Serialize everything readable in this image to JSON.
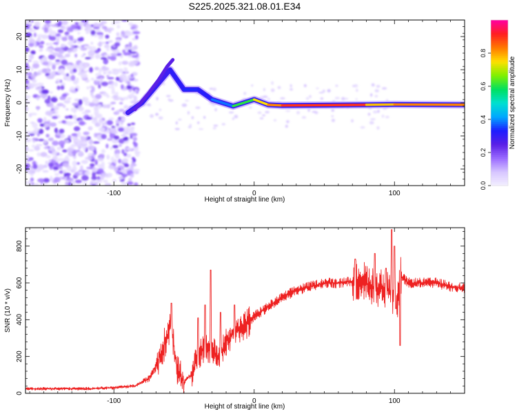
{
  "figure_title": "S225.2025.321.08.01.E34",
  "chart_data": [
    {
      "type": "heatmap",
      "title": "S225.2025.321.08.01.E34",
      "xlabel": "Height of straight line (km)",
      "ylabel": "Frequency (Hz)",
      "xlim": [
        -163,
        150
      ],
      "ylim": [
        -25,
        25
      ],
      "xticks": [
        -100,
        0,
        100
      ],
      "yticks": [
        -20,
        -10,
        0,
        10,
        20
      ],
      "xtick_labels": [
        "-100",
        "0",
        "100"
      ],
      "ytick_labels": [
        "-20",
        "-10",
        "0",
        "10",
        "20"
      ],
      "colorbar": {
        "label": "Normalized spectral amplitude",
        "range": [
          0,
          1
        ],
        "ticks": [
          0.0,
          0.2,
          0.4,
          0.6,
          0.8
        ],
        "tick_labels": [
          "0.0",
          "0.2",
          "0.4",
          "0.6",
          "0.8"
        ],
        "colormap": [
          "#f4f0ff",
          "#d7c6ff",
          "#9a6bff",
          "#5a1fe6",
          "#1d1dff",
          "#00a8ff",
          "#00e0d0",
          "#00e060",
          "#80f000",
          "#ffe000",
          "#ff7a00",
          "#ff2020",
          "#ff00a0"
        ]
      },
      "ridge": [
        {
          "x": -90,
          "freq": -3,
          "amp": 0.25
        },
        {
          "x": -80,
          "freq": 0,
          "amp": 0.28
        },
        {
          "x": -70,
          "freq": 5,
          "amp": 0.32
        },
        {
          "x": -60,
          "freq": 10,
          "amp": 0.25
        },
        {
          "x": -50,
          "freq": 4,
          "amp": 0.38
        },
        {
          "x": -40,
          "freq": 4,
          "amp": 0.3
        },
        {
          "x": -30,
          "freq": 1,
          "amp": 0.35
        },
        {
          "x": -15,
          "freq": -1,
          "amp": 0.42
        },
        {
          "x": 0,
          "freq": 1,
          "amp": 0.8
        },
        {
          "x": 10,
          "freq": -0.6,
          "amp": 0.7
        },
        {
          "x": 20,
          "freq": -0.8,
          "amp": 0.95
        },
        {
          "x": 80,
          "freq": -0.6,
          "amp": 0.85
        },
        {
          "x": 100,
          "freq": -0.5,
          "amp": 0.7
        },
        {
          "x": 150,
          "freq": -0.6,
          "amp": 0.95
        }
      ]
    },
    {
      "type": "line",
      "xlabel": "Height of straight line (km)",
      "ylabel": "SNR (10 * v/v)",
      "xlim": [
        -163,
        150
      ],
      "ylim": [
        0,
        900
      ],
      "xticks": [
        -100,
        0,
        100
      ],
      "yticks": [
        0,
        200,
        400,
        600,
        800
      ],
      "xtick_labels": [
        "-100",
        "0",
        "100"
      ],
      "ytick_labels": [
        "0",
        "200",
        "400",
        "600",
        "800"
      ],
      "series": [
        {
          "name": "SNR",
          "color": "#ee2222",
          "x": [
            -163,
            -140,
            -120,
            -100,
            -85,
            -75,
            -70,
            -65,
            -62,
            -60,
            -57,
            -55,
            -50,
            -45,
            -40,
            -35,
            -30,
            -25,
            -20,
            -15,
            -10,
            -5,
            0,
            10,
            20,
            30,
            40,
            50,
            60,
            70,
            75,
            80,
            85,
            90,
            95,
            100,
            102,
            104,
            110,
            120,
            130,
            140,
            150
          ],
          "values": [
            25,
            25,
            25,
            30,
            40,
            80,
            150,
            250,
            300,
            380,
            250,
            120,
            60,
            100,
            200,
            260,
            230,
            200,
            280,
            320,
            350,
            380,
            420,
            470,
            520,
            560,
            580,
            600,
            600,
            610,
            620,
            600,
            580,
            570,
            560,
            520,
            500,
            640,
            600,
            600,
            600,
            580,
            570
          ],
          "spikes": [
            {
              "x": -59,
              "value": 490
            },
            {
              "x": -40,
              "value": 410
            },
            {
              "x": -35,
              "value": 480
            },
            {
              "x": -31,
              "value": 670
            },
            {
              "x": -24,
              "value": 440
            },
            {
              "x": -14,
              "value": 480
            },
            {
              "x": 72,
              "value": 730
            },
            {
              "x": 86,
              "value": 760
            },
            {
              "x": 94,
              "value": 680
            },
            {
              "x": 98,
              "value": 890
            },
            {
              "x": 100,
              "value": 800
            },
            {
              "x": 101,
              "value": 460
            },
            {
              "x": 104,
              "value": 260
            }
          ]
        }
      ]
    }
  ]
}
